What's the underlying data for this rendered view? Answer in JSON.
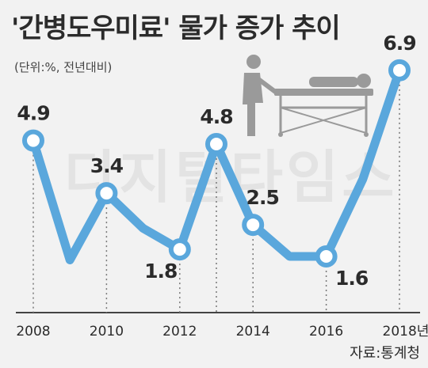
{
  "title": "'간병도우미료' 물가 증가 추이",
  "unit": "(단위:%, 전년대비)",
  "source": "자료:통계청",
  "watermark": "디지털타임스",
  "colors": {
    "line": "#5aa7dc",
    "marker_fill": "#ffffff",
    "axis": "#444444",
    "text": "#2b2b2b"
  },
  "icons": [
    "caregiver-with-patient-bed-icon"
  ],
  "chart_data": {
    "type": "line",
    "title": "'간병도우미료' 물가 증가 추이",
    "ylabel": "(단위:%, 전년대비)",
    "x": [
      2008,
      2009,
      2010,
      2011,
      2012,
      2013,
      2014,
      2015,
      2016,
      2017,
      2018
    ],
    "values": [
      4.9,
      1.5,
      3.4,
      2.4,
      1.8,
      4.8,
      2.5,
      1.6,
      1.6,
      3.8,
      6.9
    ],
    "ylim": [
      0,
      8
    ],
    "tick_labels": [
      "2008",
      "2010",
      "2012",
      "2014",
      "2016",
      "2018년"
    ],
    "labeled_points": [
      {
        "x": 2008,
        "label": "4.9",
        "pos": "above"
      },
      {
        "x": 2010,
        "label": "3.4",
        "pos": "above"
      },
      {
        "x": 2012,
        "label": "1.8",
        "pos": "left-below"
      },
      {
        "x": 2013,
        "label": "4.8",
        "pos": "above"
      },
      {
        "x": 2014,
        "label": "2.5",
        "pos": "above-right"
      },
      {
        "x": 2016,
        "label": "1.6",
        "pos": "right-below"
      },
      {
        "x": 2018,
        "label": "6.9",
        "pos": "above"
      }
    ],
    "grid": false,
    "legend": "none"
  }
}
